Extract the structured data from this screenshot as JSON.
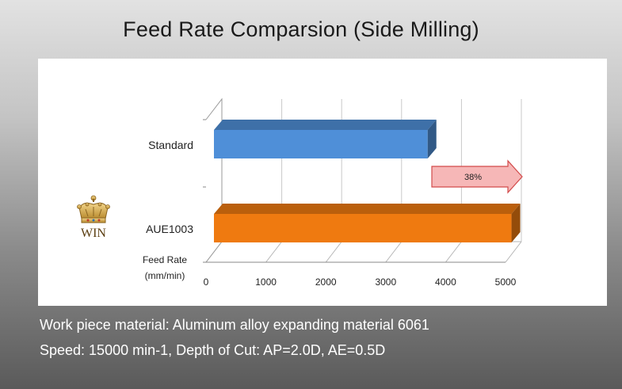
{
  "title": "Feed Rate Comparsion (Side Milling)",
  "chart_data": {
    "type": "bar",
    "orientation": "horizontal",
    "style": "3d",
    "categories": [
      "Standard",
      "AUE1003"
    ],
    "values": [
      3700,
      5100
    ],
    "colors": [
      "#4f8fd8",
      "#ef7a10"
    ],
    "xlabel": [
      "Feed Rate",
      "(mm/min)"
    ],
    "xticks": [
      0,
      1000,
      2000,
      3000,
      4000,
      5000
    ],
    "xlim": [
      0,
      5000
    ],
    "grid": true,
    "annotation": {
      "text": "38%"
    },
    "winner": {
      "category": "AUE1003",
      "label": "WIN"
    }
  },
  "footer": {
    "line1": "Work piece material: Aluminum alloy expanding material 6061",
    "line2": "Speed: 15000 min-1, Depth of Cut: AP=2.0D, AE=0.5D"
  }
}
